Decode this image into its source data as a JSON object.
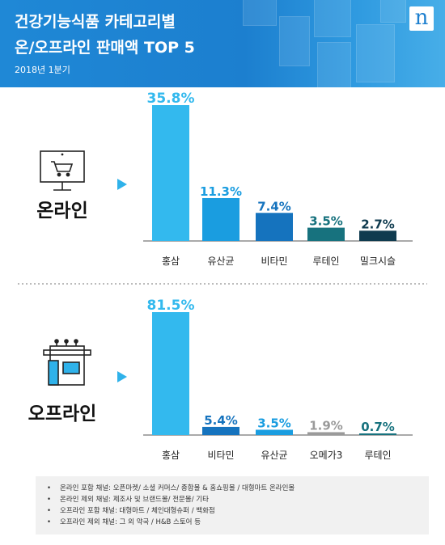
{
  "header": {
    "title_line1": "건강기능식품 카테고리별",
    "title_line2": "온/오프라인 판매액 TOP 5",
    "subtitle": "2018년 1분기",
    "logo": "n"
  },
  "colors": {
    "header_bg": "#1c7fcf",
    "bar_1": "#33b9ee",
    "bar_2": "#1a9de0",
    "bar_3": "#1573be",
    "bar_4": "#17727e",
    "bar_5": "#0f3b4f",
    "offline_bar_4": "#9a9a9a"
  },
  "panels": [
    {
      "label": "온라인",
      "icon": "monitor-cart-icon"
    },
    {
      "label": "오프라인",
      "icon": "store-icon"
    }
  ],
  "chart_data": [
    {
      "type": "bar",
      "title": "온라인",
      "categories": [
        "홍삼",
        "유산균",
        "비타민",
        "루테인",
        "밀크시슬"
      ],
      "values": [
        35.8,
        11.3,
        7.4,
        3.5,
        2.7
      ],
      "value_labels": [
        "35.8%",
        "11.3%",
        "7.4%",
        "3.5%",
        "2.7%"
      ],
      "colors": [
        "#33b9ee",
        "#1a9de0",
        "#1573be",
        "#17727e",
        "#0f3b4f"
      ],
      "ylim": [
        0,
        35.8
      ],
      "grid": false
    },
    {
      "type": "bar",
      "title": "오프라인",
      "categories": [
        "홍삼",
        "비타민",
        "유산균",
        "오메가3",
        "루테인"
      ],
      "values": [
        81.5,
        5.4,
        3.5,
        1.9,
        0.7
      ],
      "value_labels": [
        "81.5%",
        "5.4%",
        "3.5%",
        "1.9%",
        "0.7%"
      ],
      "colors": [
        "#33b9ee",
        "#1573be",
        "#1a9de0",
        "#9a9a9a",
        "#17727e"
      ],
      "ylim": [
        0,
        81.5
      ],
      "grid": false
    }
  ],
  "footnotes": [
    "온라인 포함 채널: 오픈마켓/ 소셜 커머스/ 종합몰 & 홈쇼핑몰 / 대형마트 온라인몰",
    "온라인 제외 채널: 제조사 및 브랜드몰/ 전문몰/ 기타",
    "오프라인 포함 채널: 대형마트 / 체인대형슈퍼 / 백화점",
    "오프라인 제외 채널: 그 외 약국 / H&B 스토어 등"
  ]
}
